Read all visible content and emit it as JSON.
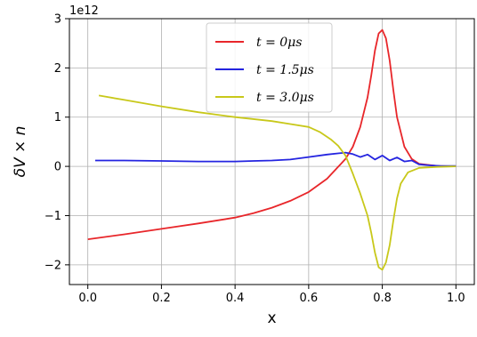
{
  "chart_data": {
    "type": "line",
    "xlabel": "x",
    "ylabel": "δV × n",
    "offset_text": "1e12",
    "xlim": [
      -0.05,
      1.05
    ],
    "ylim": [
      -2.4,
      3.0
    ],
    "xticks": [
      0.0,
      0.2,
      0.4,
      0.6,
      0.8,
      1.0
    ],
    "xtick_labels": [
      "0.0",
      "0.2",
      "0.4",
      "0.6",
      "0.8",
      "1.0"
    ],
    "yticks": [
      -2,
      -1,
      0,
      1,
      2,
      3
    ],
    "ytick_labels": [
      "−2",
      "−1",
      "0",
      "1",
      "2",
      "3"
    ],
    "grid": true,
    "legend_position": "top-center",
    "series": [
      {
        "name": "t = 0μs",
        "color": "#e8262a",
        "x": [
          0.0,
          0.1,
          0.2,
          0.3,
          0.4,
          0.45,
          0.5,
          0.55,
          0.6,
          0.65,
          0.7,
          0.72,
          0.74,
          0.76,
          0.77,
          0.78,
          0.79,
          0.8,
          0.81,
          0.82,
          0.83,
          0.84,
          0.86,
          0.88,
          0.9,
          0.95,
          1.0
        ],
        "y": [
          -1.48,
          -1.38,
          -1.27,
          -1.16,
          -1.04,
          -0.95,
          -0.84,
          -0.7,
          -0.52,
          -0.25,
          0.15,
          0.4,
          0.8,
          1.4,
          1.85,
          2.35,
          2.7,
          2.77,
          2.6,
          2.15,
          1.55,
          1.0,
          0.4,
          0.15,
          0.05,
          0.01,
          0.0
        ]
      },
      {
        "name": "t = 1.5μs",
        "color": "#2424e0",
        "x": [
          0.02,
          0.1,
          0.2,
          0.3,
          0.4,
          0.45,
          0.5,
          0.55,
          0.6,
          0.65,
          0.7,
          0.72,
          0.74,
          0.76,
          0.78,
          0.8,
          0.82,
          0.84,
          0.86,
          0.88,
          0.9,
          0.93,
          0.96,
          1.0
        ],
        "y": [
          0.12,
          0.12,
          0.11,
          0.1,
          0.1,
          0.11,
          0.12,
          0.14,
          0.19,
          0.24,
          0.28,
          0.25,
          0.19,
          0.24,
          0.14,
          0.22,
          0.12,
          0.18,
          0.1,
          0.12,
          0.04,
          0.02,
          0.01,
          0.01
        ]
      },
      {
        "name": "t = 3.0μs",
        "color": "#c8c81a",
        "x": [
          0.03,
          0.1,
          0.2,
          0.3,
          0.4,
          0.5,
          0.55,
          0.6,
          0.63,
          0.66,
          0.68,
          0.7,
          0.72,
          0.74,
          0.76,
          0.77,
          0.78,
          0.79,
          0.8,
          0.81,
          0.82,
          0.83,
          0.84,
          0.85,
          0.87,
          0.9,
          0.95,
          1.0
        ],
        "y": [
          1.44,
          1.35,
          1.22,
          1.1,
          1.0,
          0.92,
          0.86,
          0.8,
          0.7,
          0.55,
          0.42,
          0.22,
          -0.15,
          -0.55,
          -1.0,
          -1.35,
          -1.75,
          -2.05,
          -2.1,
          -1.95,
          -1.6,
          -1.1,
          -0.65,
          -0.35,
          -0.12,
          -0.03,
          -0.01,
          0.0
        ]
      }
    ]
  }
}
